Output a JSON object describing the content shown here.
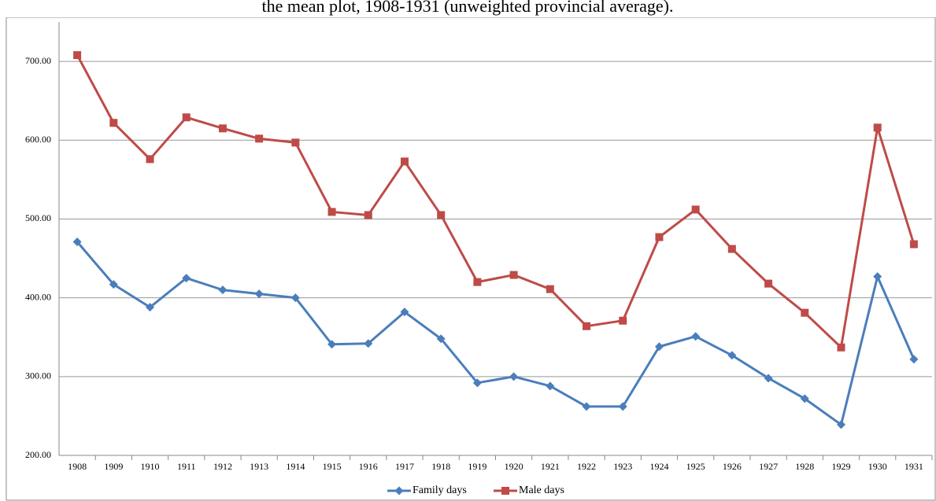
{
  "chart_data": {
    "type": "line",
    "title": "the mean plot, 1908-1931 (unweighted provincial average).",
    "categories": [
      "1908",
      "1909",
      "1910",
      "1911",
      "1912",
      "1913",
      "1914",
      "1915",
      "1916",
      "1917",
      "1918",
      "1919",
      "1920",
      "1921",
      "1922",
      "1923",
      "1924",
      "1925",
      "1926",
      "1927",
      "1928",
      "1929",
      "1930",
      "1931"
    ],
    "series": [
      {
        "name": "Family days",
        "color": "#4a7ebb",
        "marker": "diamond",
        "values": [
          471,
          417,
          388,
          425,
          410,
          405,
          400,
          341,
          342,
          382,
          348,
          292,
          300,
          288,
          262,
          262,
          338,
          351,
          327,
          298,
          272,
          239,
          427,
          322
        ]
      },
      {
        "name": "Male days",
        "color": "#be4b48",
        "marker": "square",
        "values": [
          708,
          622,
          576,
          629,
          615,
          602,
          597,
          509,
          505,
          573,
          505,
          420,
          429,
          411,
          364,
          371,
          477,
          512,
          462,
          418,
          381,
          337,
          616,
          468
        ]
      }
    ],
    "ylim": [
      200,
      750
    ],
    "yticks": [
      {
        "value": 200,
        "label": "200.00"
      },
      {
        "value": 300,
        "label": "300.00"
      },
      {
        "value": 400,
        "label": "400.00"
      },
      {
        "value": 500,
        "label": "500.00"
      },
      {
        "value": 600,
        "label": "600.00"
      },
      {
        "value": 700,
        "label": "700.00"
      }
    ],
    "grid": true,
    "legend": "bottom"
  }
}
